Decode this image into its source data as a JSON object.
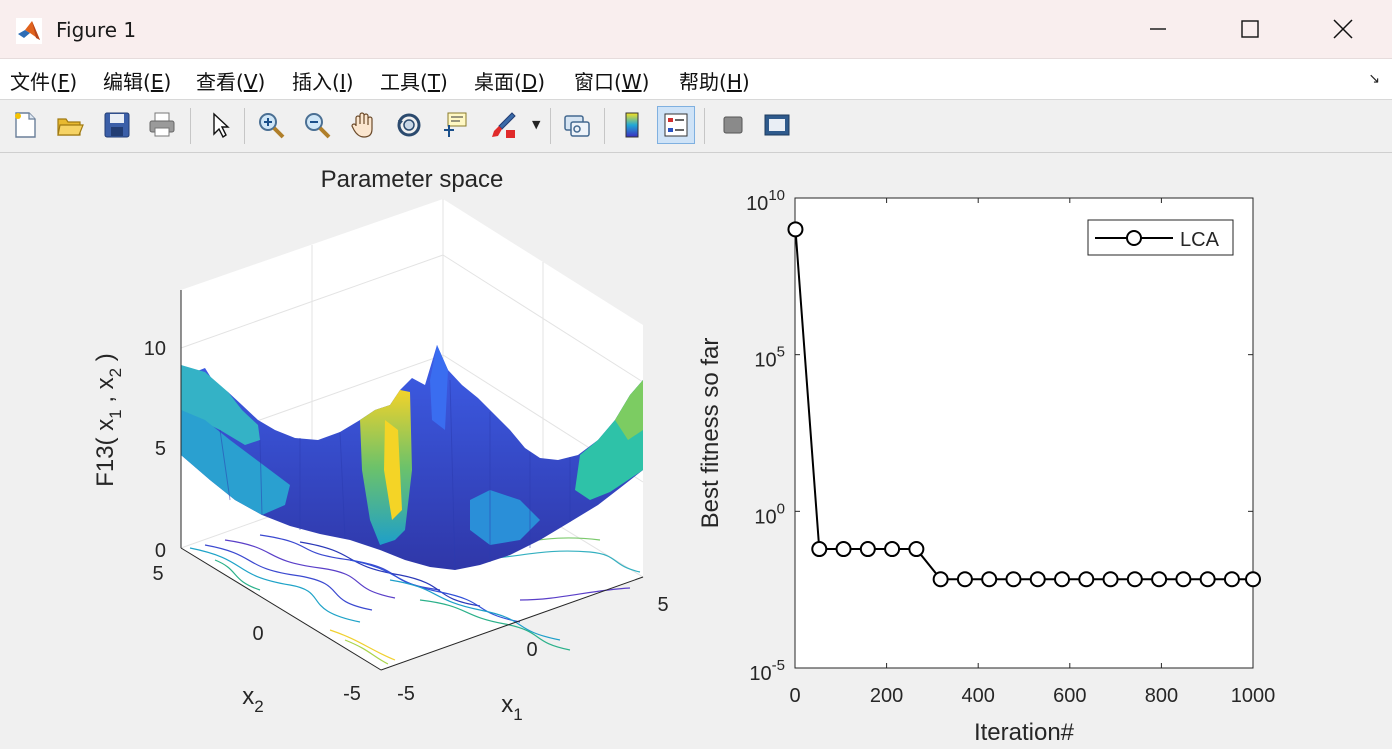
{
  "window": {
    "title": "Figure 1",
    "controls": [
      "minimize-icon",
      "maximize-icon",
      "close-icon"
    ]
  },
  "menu": {
    "items": [
      {
        "text": "文件(",
        "key": "F",
        "end": ")"
      },
      {
        "text": "编辑(",
        "key": "E",
        "end": ")"
      },
      {
        "text": "查看(",
        "key": "V",
        "end": ")"
      },
      {
        "text": "插入(",
        "key": "I",
        "end": ")"
      },
      {
        "text": "工具(",
        "key": "T",
        "end": ")"
      },
      {
        "text": "桌面(",
        "key": "D",
        "end": ")"
      },
      {
        "text": "窗口(",
        "key": "W",
        "end": ")"
      },
      {
        "text": "帮助(",
        "key": "H",
        "end": ")"
      }
    ]
  },
  "toolbar": {
    "buttons": [
      "new-figure-icon",
      "open-icon",
      "save-icon",
      "print-icon",
      "pointer-icon",
      "zoom-in-icon",
      "zoom-out-icon",
      "pan-icon",
      "rotate-3d-icon",
      "data-cursor-icon",
      "brush-icon",
      "link-plot-icon",
      "colorbar-icon",
      "legend-icon",
      "hide-plot-tools-icon",
      "show-plot-tools-icon"
    ],
    "active": "legend-icon"
  },
  "left_plot": {
    "title": "Parameter space",
    "zlabel": "F13( x",
    "zlabel_sub1": "1",
    "zlabel_mid": " , x",
    "zlabel_sub2": "2",
    "zlabel_end": " )",
    "xlabel": "x",
    "xlabel_sub": "1",
    "ylabel": "x",
    "ylabel_sub": "2",
    "zticks": [
      "0",
      "5",
      "10"
    ],
    "xticks": [
      "-5",
      "0",
      "5"
    ],
    "yticks": [
      "5",
      "0",
      "-5"
    ]
  },
  "chart_data": {
    "type": "line",
    "title": "",
    "xlabel": "Iteration#",
    "ylabel": "Best fitness so far",
    "yscale": "log",
    "xlim": [
      0,
      1000
    ],
    "ylim": [
      1e-05,
      10000000000.0
    ],
    "xticks": [
      "0",
      "200",
      "400",
      "600",
      "800",
      "1000"
    ],
    "yticks": [
      {
        "base": "10",
        "exp": "-5"
      },
      {
        "base": "10",
        "exp": "0"
      },
      {
        "base": "10",
        "exp": "5"
      },
      {
        "base": "10",
        "exp": "10"
      }
    ],
    "legend": {
      "position": "top-right"
    },
    "series": [
      {
        "name": "LCA",
        "color": "#000000",
        "marker": "circle",
        "x": [
          1,
          53,
          106,
          159,
          212,
          265,
          318,
          371,
          424,
          477,
          530,
          583,
          636,
          689,
          742,
          795,
          848,
          901,
          954,
          1000
        ],
        "y": [
          1000000000.0,
          0.0625,
          0.0625,
          0.0625,
          0.0625,
          0.0625,
          0.0068,
          0.0068,
          0.0068,
          0.0068,
          0.0068,
          0.0068,
          0.0068,
          0.0068,
          0.0068,
          0.0068,
          0.0068,
          0.0068,
          0.0068,
          0.0068
        ]
      }
    ]
  }
}
